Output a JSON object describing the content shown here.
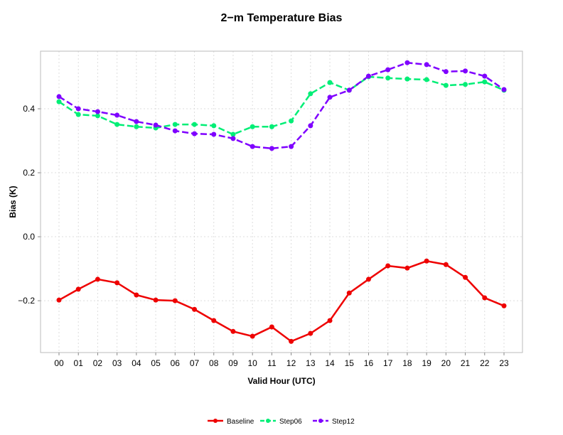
{
  "chart_data": {
    "type": "line",
    "title": "2−m Temperature Bias",
    "xlabel": "Valid Hour (UTC)",
    "ylabel": "Bias (K)",
    "ylim": [
      -0.362,
      0.58
    ],
    "yticks": [
      -0.2,
      0.0,
      0.2,
      0.4
    ],
    "ytick_labels": [
      "−0.2",
      "0.0",
      "0.2",
      "0.4"
    ],
    "grid": true,
    "legend_position": "bottom-center",
    "categories": [
      "00",
      "01",
      "02",
      "03",
      "04",
      "05",
      "06",
      "07",
      "08",
      "09",
      "10",
      "11",
      "12",
      "13",
      "14",
      "15",
      "16",
      "17",
      "18",
      "19",
      "20",
      "21",
      "22",
      "23"
    ],
    "series": [
      {
        "name": "Baseline",
        "color": "#ee0000",
        "dash": "solid",
        "values": [
          -0.198,
          -0.164,
          -0.133,
          -0.144,
          -0.182,
          -0.198,
          -0.2,
          -0.227,
          -0.262,
          -0.296,
          -0.311,
          -0.282,
          -0.327,
          -0.302,
          -0.262,
          -0.176,
          -0.133,
          -0.091,
          -0.098,
          -0.076,
          -0.087,
          -0.127,
          -0.191,
          -0.216
        ]
      },
      {
        "name": "Step06",
        "color": "#00ee76",
        "dash": "dashed",
        "values": [
          0.422,
          0.382,
          0.378,
          0.351,
          0.344,
          0.34,
          0.351,
          0.351,
          0.347,
          0.32,
          0.344,
          0.344,
          0.362,
          0.447,
          0.482,
          0.458,
          0.5,
          0.496,
          0.493,
          0.491,
          0.473,
          0.476,
          0.484,
          0.458
        ]
      },
      {
        "name": "Step12",
        "color": "#7f00ff",
        "dash": "dashed",
        "values": [
          0.438,
          0.4,
          0.391,
          0.38,
          0.36,
          0.349,
          0.331,
          0.322,
          0.32,
          0.307,
          0.282,
          0.276,
          0.282,
          0.347,
          0.436,
          0.458,
          0.502,
          0.522,
          0.544,
          0.538,
          0.516,
          0.518,
          0.502,
          0.46
        ]
      }
    ]
  }
}
